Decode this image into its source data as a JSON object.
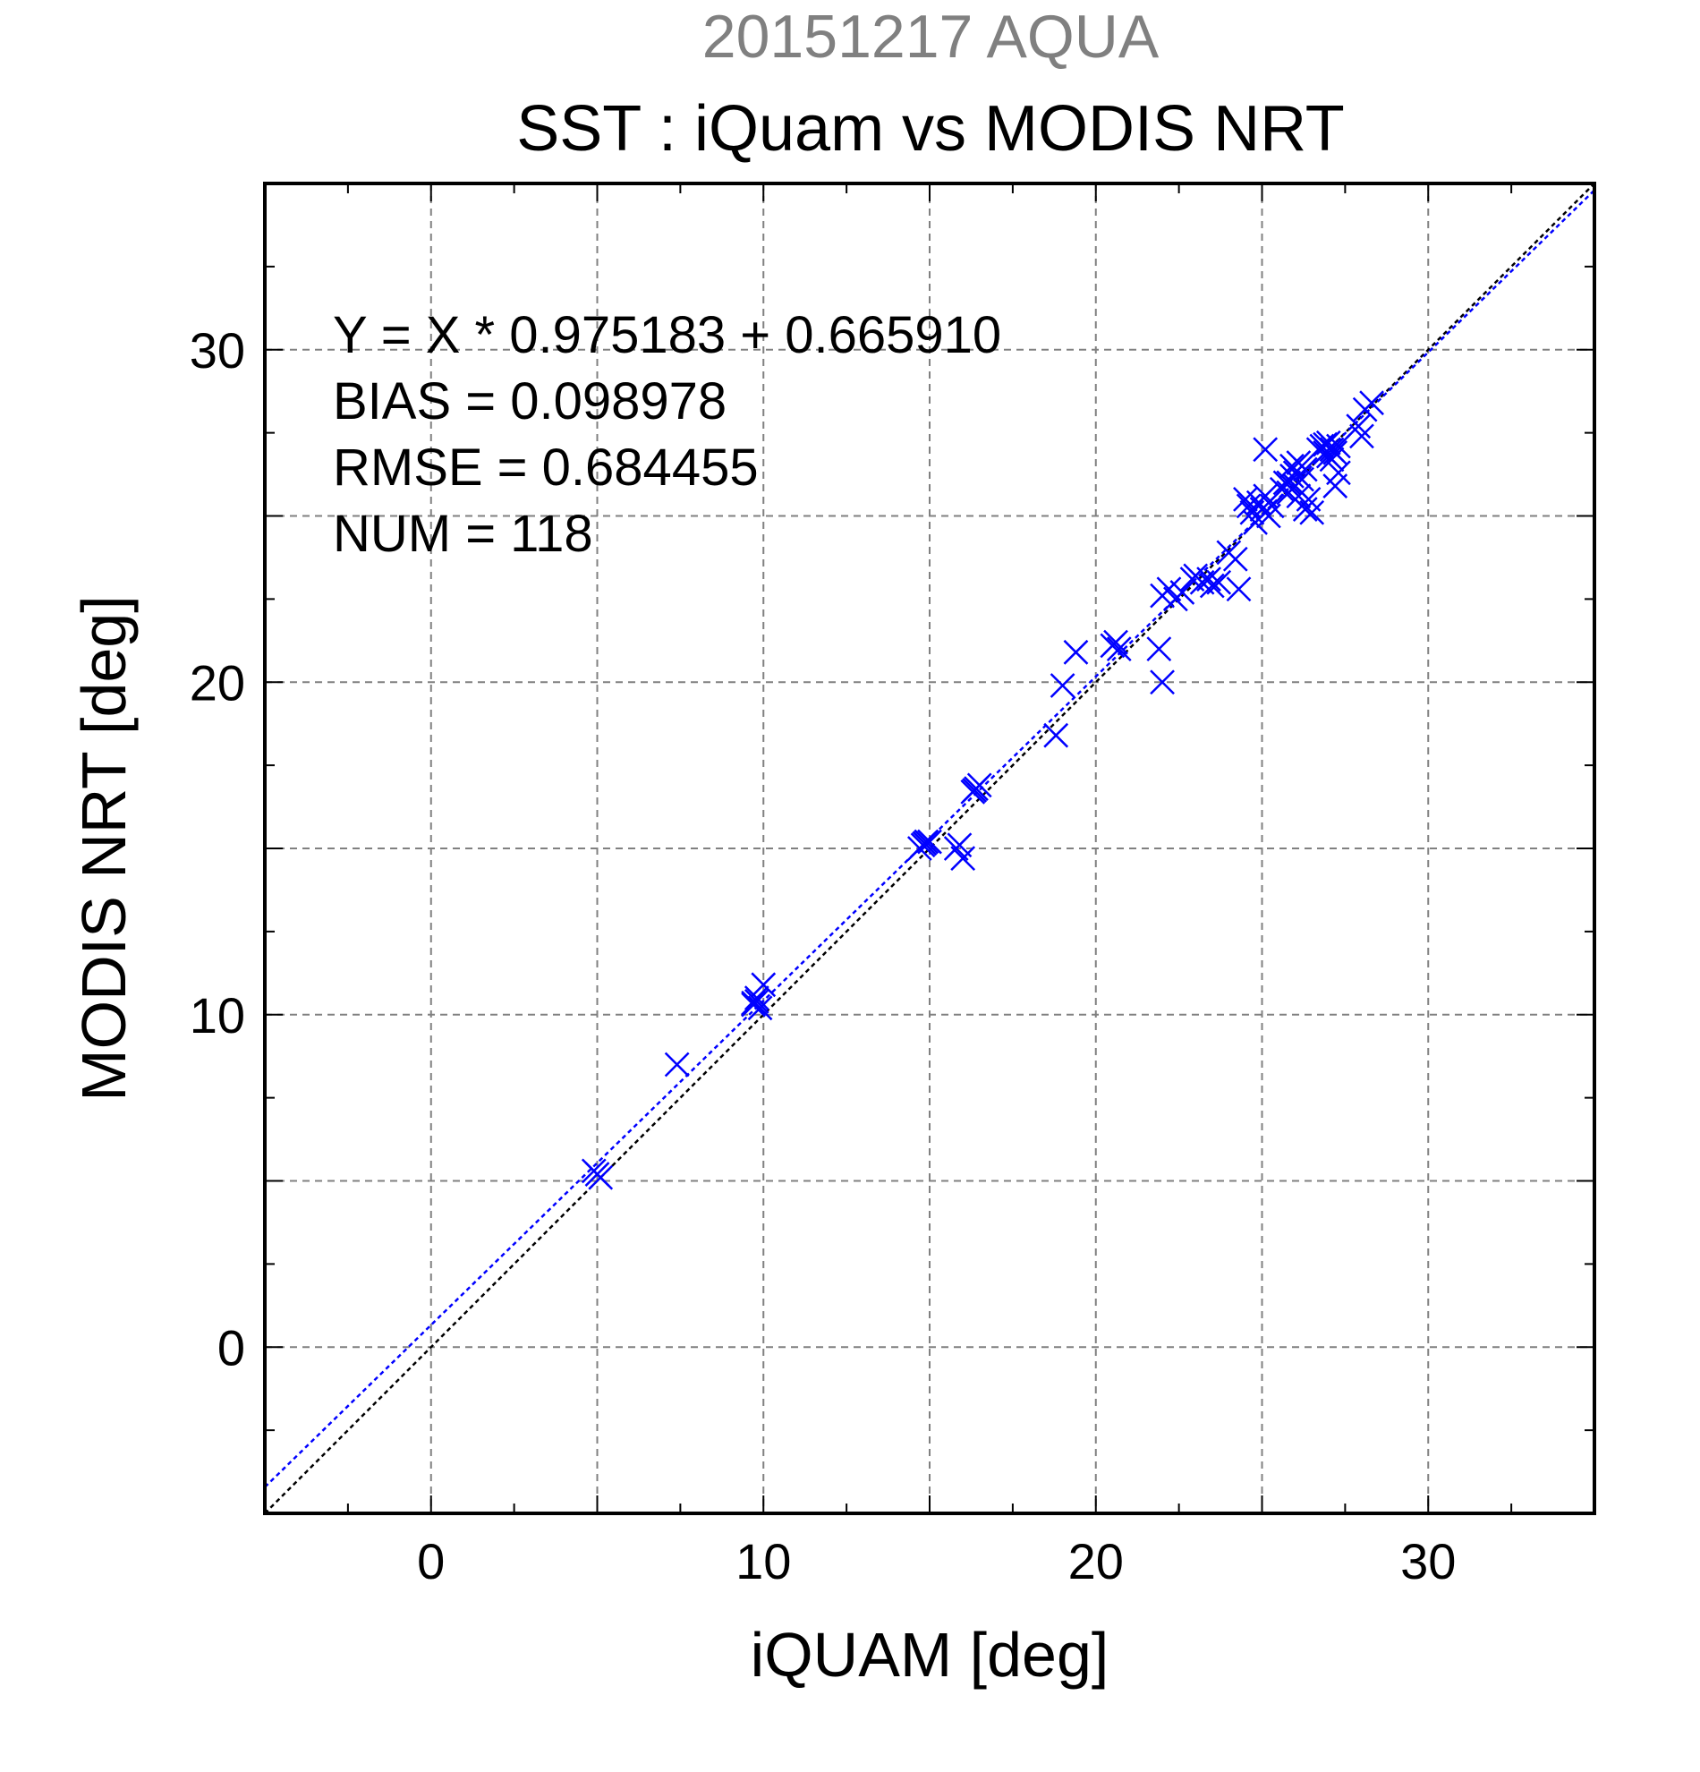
{
  "chart_data": {
    "type": "scatter",
    "title": "20151217 AQUA",
    "subtitle": "SST : iQuam vs MODIS NRT",
    "xlabel": "iQUAM [deg]",
    "ylabel": "MODIS NRT [deg]",
    "xlim": [
      -5,
      35
    ],
    "ylim": [
      -5,
      35
    ],
    "xticks": [
      "0",
      "10",
      "20",
      "30"
    ],
    "yticks": [
      "0",
      "10",
      "20",
      "30"
    ],
    "grid": true,
    "annotations": [
      "Y = X * 0.975183 + 0.665910",
      "BIAS = 0.098978",
      "RMSE = 0.684455",
      "NUM = 118"
    ],
    "regression": {
      "slope": 0.975183,
      "intercept": 0.66591
    },
    "reference_line": "y = x",
    "colors": {
      "points": "#0000ff",
      "fit_line": "#0000ff",
      "identity_line": "#000000",
      "title": "#808080",
      "grid": "#808080"
    },
    "points": [
      [
        5.0,
        5.2
      ],
      [
        4.9,
        5.3
      ],
      [
        5.1,
        5.1
      ],
      [
        7.4,
        8.5
      ],
      [
        9.7,
        10.3
      ],
      [
        9.8,
        10.5
      ],
      [
        9.9,
        10.2
      ],
      [
        9.8,
        10.4
      ],
      [
        10.0,
        10.9
      ],
      [
        9.7,
        10.35
      ],
      [
        14.8,
        15.1
      ],
      [
        14.9,
        15.2
      ],
      [
        14.7,
        15.0
      ],
      [
        14.85,
        15.15
      ],
      [
        15.0,
        15.2
      ],
      [
        15.8,
        15.0
      ],
      [
        16.0,
        14.7
      ],
      [
        15.9,
        15.1
      ],
      [
        16.3,
        16.7
      ],
      [
        16.4,
        16.8
      ],
      [
        16.5,
        16.9
      ],
      [
        16.35,
        16.75
      ],
      [
        18.8,
        18.4
      ],
      [
        19.0,
        19.9
      ],
      [
        19.4,
        20.9
      ],
      [
        20.5,
        21.1
      ],
      [
        20.6,
        21.2
      ],
      [
        20.7,
        21.0
      ],
      [
        21.9,
        21.0
      ],
      [
        22.0,
        20.0
      ],
      [
        22.0,
        22.6
      ],
      [
        22.2,
        22.8
      ],
      [
        22.4,
        22.5
      ],
      [
        22.6,
        22.7
      ],
      [
        22.9,
        23.1
      ],
      [
        23.0,
        23.2
      ],
      [
        23.2,
        23.0
      ],
      [
        23.4,
        23.1
      ],
      [
        23.5,
        22.9
      ],
      [
        23.7,
        23.0
      ],
      [
        24.0,
        23.9
      ],
      [
        24.2,
        23.7
      ],
      [
        24.3,
        22.8
      ],
      [
        24.5,
        25.5
      ],
      [
        24.6,
        25.3
      ],
      [
        24.7,
        25.1
      ],
      [
        24.8,
        24.8
      ],
      [
        24.9,
        25.4
      ],
      [
        25.0,
        25.2
      ],
      [
        25.1,
        27.0
      ],
      [
        25.2,
        25.0
      ],
      [
        25.3,
        25.3
      ],
      [
        25.1,
        25.6
      ],
      [
        25.6,
        25.8
      ],
      [
        25.7,
        26.0
      ],
      [
        25.8,
        25.7
      ],
      [
        25.9,
        26.2
      ],
      [
        25.9,
        26.5
      ],
      [
        26.0,
        26.3
      ],
      [
        26.0,
        25.9
      ],
      [
        26.1,
        26.6
      ],
      [
        26.2,
        26.1
      ],
      [
        26.3,
        25.2
      ],
      [
        26.4,
        25.5
      ],
      [
        26.3,
        26.4
      ],
      [
        26.1,
        25.6
      ],
      [
        26.5,
        25.1
      ],
      [
        25.8,
        26.0
      ],
      [
        26.8,
        27.1
      ],
      [
        26.9,
        26.9
      ],
      [
        27.0,
        27.2
      ],
      [
        27.1,
        27.0
      ],
      [
        26.7,
        27.0
      ],
      [
        27.0,
        26.8
      ],
      [
        27.2,
        26.9
      ],
      [
        27.3,
        27.1
      ],
      [
        27.1,
        26.7
      ],
      [
        26.9,
        27.15
      ],
      [
        27.3,
        26.3
      ],
      [
        27.2,
        25.9
      ],
      [
        27.9,
        27.7
      ],
      [
        28.0,
        27.4
      ],
      [
        28.1,
        28.2
      ],
      [
        28.3,
        28.4
      ]
    ]
  }
}
